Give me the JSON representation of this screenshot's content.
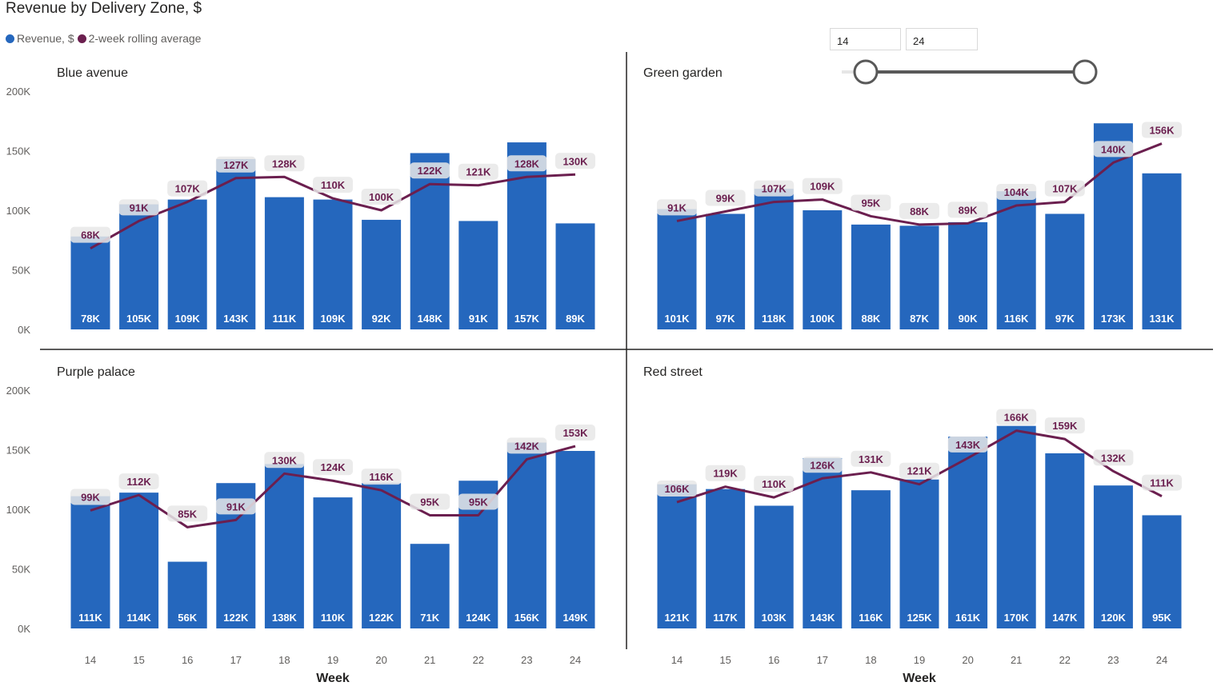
{
  "title": "Revenue by Delivery Zone, $",
  "legend": [
    {
      "label": "Revenue, $",
      "color": "#2567bd"
    },
    {
      "label": "2-week rolling average",
      "color": "#6b1f4f"
    }
  ],
  "slicer": {
    "from_value": "14",
    "to_value": "24",
    "min": 14,
    "max": 24
  },
  "colors": {
    "bar": "#2567bd",
    "line": "#6b1f4f",
    "label_bg": "#e8e8e8",
    "divider": "#252423"
  },
  "chart_data": [
    {
      "type": "bar",
      "title": "Blue avenue",
      "categories": [
        "14",
        "15",
        "16",
        "17",
        "18",
        "19",
        "20",
        "21",
        "22",
        "23",
        "24"
      ],
      "ylim": [
        0,
        200000
      ],
      "yticks": [
        "0K",
        "50K",
        "100K",
        "150K",
        "200K"
      ],
      "series": [
        {
          "name": "Revenue, $",
          "values": [
            78000,
            105000,
            109000,
            143000,
            111000,
            109000,
            92000,
            148000,
            91000,
            157000,
            89000
          ],
          "labels": [
            "78K",
            "105K",
            "109K",
            "143K",
            "111K",
            "109K",
            "92K",
            "148K",
            "91K",
            "157K",
            "89K"
          ]
        },
        {
          "name": "2-week rolling average",
          "values": [
            68000,
            91000,
            107000,
            127000,
            128000,
            110000,
            100000,
            122000,
            121000,
            128000,
            130000
          ],
          "labels": [
            "68K",
            "91K",
            "107K",
            "127K",
            "128K",
            "110K",
            "100K",
            "122K",
            "121K",
            "128K",
            "130K"
          ]
        }
      ]
    },
    {
      "type": "bar",
      "title": "Green garden",
      "categories": [
        "14",
        "15",
        "16",
        "17",
        "18",
        "19",
        "20",
        "21",
        "22",
        "23",
        "24"
      ],
      "ylim": [
        0,
        200000
      ],
      "series": [
        {
          "name": "Revenue, $",
          "values": [
            101000,
            97000,
            118000,
            100000,
            88000,
            87000,
            90000,
            116000,
            97000,
            173000,
            131000
          ],
          "labels": [
            "101K",
            "97K",
            "118K",
            "100K",
            "88K",
            "87K",
            "90K",
            "116K",
            "97K",
            "173K",
            "131K"
          ]
        },
        {
          "name": "2-week rolling average",
          "values": [
            91000,
            99000,
            107000,
            109000,
            95000,
            88000,
            89000,
            104000,
            107000,
            140000,
            156000
          ],
          "labels": [
            "91K",
            "99K",
            "107K",
            "109K",
            "95K",
            "88K",
            "89K",
            "104K",
            "107K",
            "140K",
            "156K"
          ]
        }
      ]
    },
    {
      "type": "bar",
      "title": "Purple palace",
      "categories": [
        "14",
        "15",
        "16",
        "17",
        "18",
        "19",
        "20",
        "21",
        "22",
        "23",
        "24"
      ],
      "ylim": [
        0,
        200000
      ],
      "yticks": [
        "0K",
        "50K",
        "100K",
        "150K",
        "200K"
      ],
      "xlabel": "Week",
      "series": [
        {
          "name": "Revenue, $",
          "values": [
            111000,
            114000,
            56000,
            122000,
            138000,
            110000,
            122000,
            71000,
            124000,
            156000,
            149000
          ],
          "labels": [
            "111K",
            "114K",
            "56K",
            "122K",
            "138K",
            "110K",
            "122K",
            "71K",
            "124K",
            "156K",
            "149K"
          ]
        },
        {
          "name": "2-week rolling average",
          "values": [
            99000,
            112000,
            85000,
            91000,
            130000,
            124000,
            116000,
            95000,
            95000,
            142000,
            153000
          ],
          "labels": [
            "99K",
            "112K",
            "85K",
            "91K",
            "130K",
            "124K",
            "116K",
            "95K",
            "95K",
            "142K",
            "153K"
          ]
        }
      ]
    },
    {
      "type": "bar",
      "title": "Red street",
      "categories": [
        "14",
        "15",
        "16",
        "17",
        "18",
        "19",
        "20",
        "21",
        "22",
        "23",
        "24"
      ],
      "ylim": [
        0,
        200000
      ],
      "xlabel": "Week",
      "series": [
        {
          "name": "Revenue, $",
          "values": [
            121000,
            117000,
            103000,
            143000,
            116000,
            125000,
            161000,
            170000,
            147000,
            120000,
            95000
          ],
          "labels": [
            "121K",
            "117K",
            "103K",
            "143K",
            "116K",
            "125K",
            "161K",
            "170K",
            "147K",
            "120K",
            "95K"
          ]
        },
        {
          "name": "2-week rolling average",
          "values": [
            106000,
            119000,
            110000,
            126000,
            131000,
            121000,
            143000,
            166000,
            159000,
            132000,
            111000
          ],
          "labels": [
            "106K",
            "119K",
            "110K",
            "126K",
            "131K",
            "121K",
            "143K",
            "166K",
            "159K",
            "132K",
            "111K"
          ]
        }
      ]
    }
  ]
}
